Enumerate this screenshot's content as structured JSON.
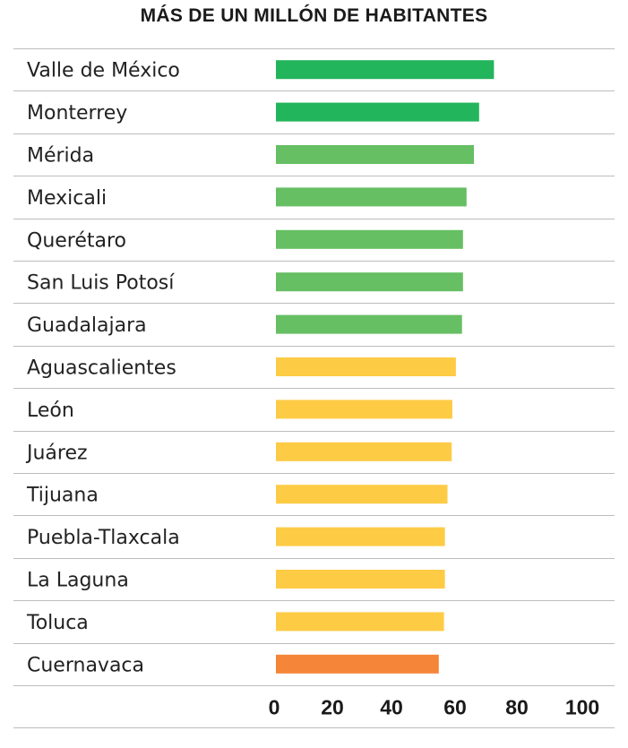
{
  "chart_data": {
    "type": "bar",
    "orientation": "horizontal",
    "title": "MÁS DE UN MILLÓN DE HABITANTES",
    "xlim": [
      0,
      100
    ],
    "xticks": [
      "0",
      "20",
      "40",
      "60",
      "80",
      "100"
    ],
    "grid": "horizontal row separators",
    "categories": [
      "Valle de México",
      "Monterrey",
      "Mérida",
      "Mexicali",
      "Querétaro",
      "San Luis Potosí",
      "Guadalajara",
      "Aguascalientes",
      "León",
      "Juárez",
      "Tijuana",
      "Puebla-Tlaxcala",
      "La Laguna",
      "Toluca",
      "Cuernavaca"
    ],
    "values": [
      67.6,
      63.0,
      61.4,
      59.1,
      58.0,
      58.0,
      57.7,
      55.8,
      54.7,
      54.5,
      53.2,
      52.4,
      52.4,
      52.1,
      50.5
    ],
    "colors": [
      "#22b55b",
      "#22b55b",
      "#66bf63",
      "#66bf63",
      "#66bf63",
      "#66bf63",
      "#66bf63",
      "#fecb45",
      "#fecb45",
      "#fecb45",
      "#fecb45",
      "#fecb45",
      "#fecb45",
      "#fecb45",
      "#f58538"
    ]
  }
}
